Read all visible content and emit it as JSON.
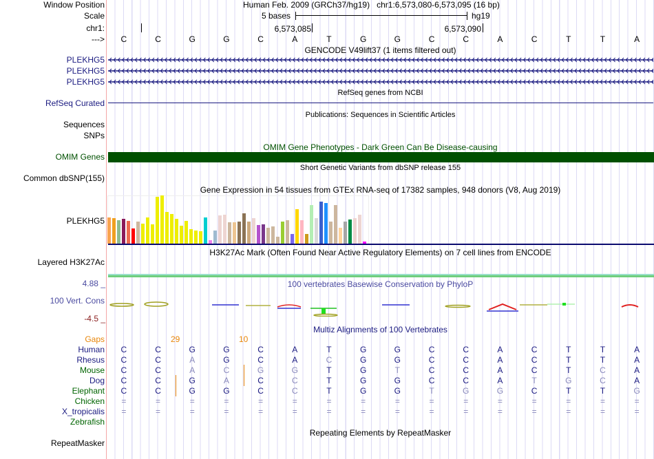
{
  "header": {
    "window_position_label": "Window Position",
    "window_position": "Human Feb. 2009 (GRCh37/hg19)   chr1:6,573,080-6,573,095 (16 bp)",
    "scale_label": "Scale",
    "scale_text": "5 bases",
    "scale_assembly": "hg19",
    "chrom_label": "chr1:",
    "coord_1": "6,573,085",
    "coord_2": "6,573,090",
    "strand_label": "--->"
  },
  "sequence": [
    "C",
    "C",
    "G",
    "G",
    "C",
    "A",
    "T",
    "G",
    "G",
    "C",
    "C",
    "A",
    "C",
    "T",
    "T",
    "A"
  ],
  "gencode": {
    "title": "GENCODE V49lift37 (1 items filtered out)",
    "genes": [
      "PLEKHG5",
      "PLEKHG5",
      "PLEKHG5"
    ]
  },
  "refseq": {
    "title": "RefSeq genes from NCBI",
    "label": "RefSeq Curated"
  },
  "publications": {
    "title": "Publications: Sequences in Scientific Articles",
    "labels": [
      "Sequences",
      "SNPs"
    ]
  },
  "omim": {
    "title": "OMIM Gene Phenotypes - Dark Green Can Be Disease-causing",
    "label": "OMIM Genes",
    "color": "#005000"
  },
  "dbsnp": {
    "title": "Short Genetic Variants from dbSNP release 155",
    "label": "Common dbSNP(155)"
  },
  "gtex": {
    "title": "Gene Expression in 54 tissues from GTEx RNA-seq of 17382 samples, 948 donors (V8, Aug 2019)",
    "label": "PLEKHG5",
    "levels": [
      38,
      37,
      34,
      36,
      33,
      22,
      32,
      29,
      38,
      28,
      68,
      70,
      46,
      43,
      36,
      26,
      33,
      21,
      19,
      18,
      38,
      5,
      19,
      41,
      42,
      31,
      31,
      32,
      44,
      32,
      37,
      27,
      28,
      23,
      25,
      10,
      32,
      34,
      14,
      50,
      34,
      14,
      56,
      37,
      61,
      59,
      32,
      56,
      23,
      32,
      35,
      37,
      42,
      3
    ],
    "colors": [
      "#f9a350",
      "#f0a020",
      "#8fbc8f",
      "#8b1a5a",
      "#ee6a50",
      "#ff0000",
      "#cdb79e",
      "#eeee00",
      "#eeee00",
      "#eeee00",
      "#eeee00",
      "#eeee00",
      "#eeee00",
      "#eeee00",
      "#eeee00",
      "#eeee00",
      "#eeee00",
      "#eeee00",
      "#eeee00",
      "#eeee00",
      "#00ced1",
      "#ee82ee",
      "#9fbbd0",
      "#eed5d2",
      "#eed5d2",
      "#cdb79e",
      "#eec591",
      "#8b7355",
      "#8b7355",
      "#cdaa7d",
      "#eed5d2",
      "#b452cd",
      "#7a378b",
      "#cdb79e",
      "#cdb79e",
      "#cdb79e",
      "#9acd32",
      "#cdb79e",
      "#7b68ee",
      "#ffd700",
      "#ffb6c1",
      "#cd9b1d",
      "#b4eeb4",
      "#d9d9d9",
      "#3a5fcd",
      "#1e90ff",
      "#cdb79e",
      "#cdb79e",
      "#ffd39b",
      "#a6a6a6",
      "#008b45",
      "#eed5d2",
      "#eed5d2",
      "#ff00ff"
    ]
  },
  "h3k27ac": {
    "title": "H3K27Ac Mark (Often Found Near Active Regulatory Elements) on 7 cell lines from ENCODE",
    "label": "Layered H3K27Ac"
  },
  "phylop": {
    "title": "100 vertebrates Basewise Conservation by PhyloP",
    "label": "100 Vert. Cons",
    "max": "4.88 _",
    "min": "-4.5 _"
  },
  "multiz": {
    "title": "Multiz Alignments of 100 Vertebrates",
    "gaps_label": "Gaps",
    "gap_counts": [
      "29",
      "10"
    ],
    "species": [
      {
        "name": "Human",
        "seq": "CCGGCATGGCCACTTA",
        "color": "#1a1a80"
      },
      {
        "name": "Rhesus",
        "seq": "CCaGCAcGGCCACTTA",
        "color": "#1a1a80"
      },
      {
        "name": "Mouse",
        "seq": "CCacggTGtCCACTcA",
        "color": "#006400"
      },
      {
        "name": "Dog",
        "seq": "CCGaCcTGGCCAtgcA",
        "color": "#1a1a80"
      },
      {
        "name": "Elephant",
        "seq": "CCGGCcTGGtggCTTg",
        "color": "#006400"
      },
      {
        "name": "Chicken",
        "seq": "================",
        "color": "#006400"
      },
      {
        "name": "X_tropicalis",
        "seq": "================",
        "color": "#1a1a80"
      },
      {
        "name": "Zebrafish",
        "seq": "",
        "color": "#006400"
      }
    ]
  },
  "repeatmasker": {
    "title": "Repeating Elements by RepeatMasker",
    "label": "RepeatMasker"
  }
}
